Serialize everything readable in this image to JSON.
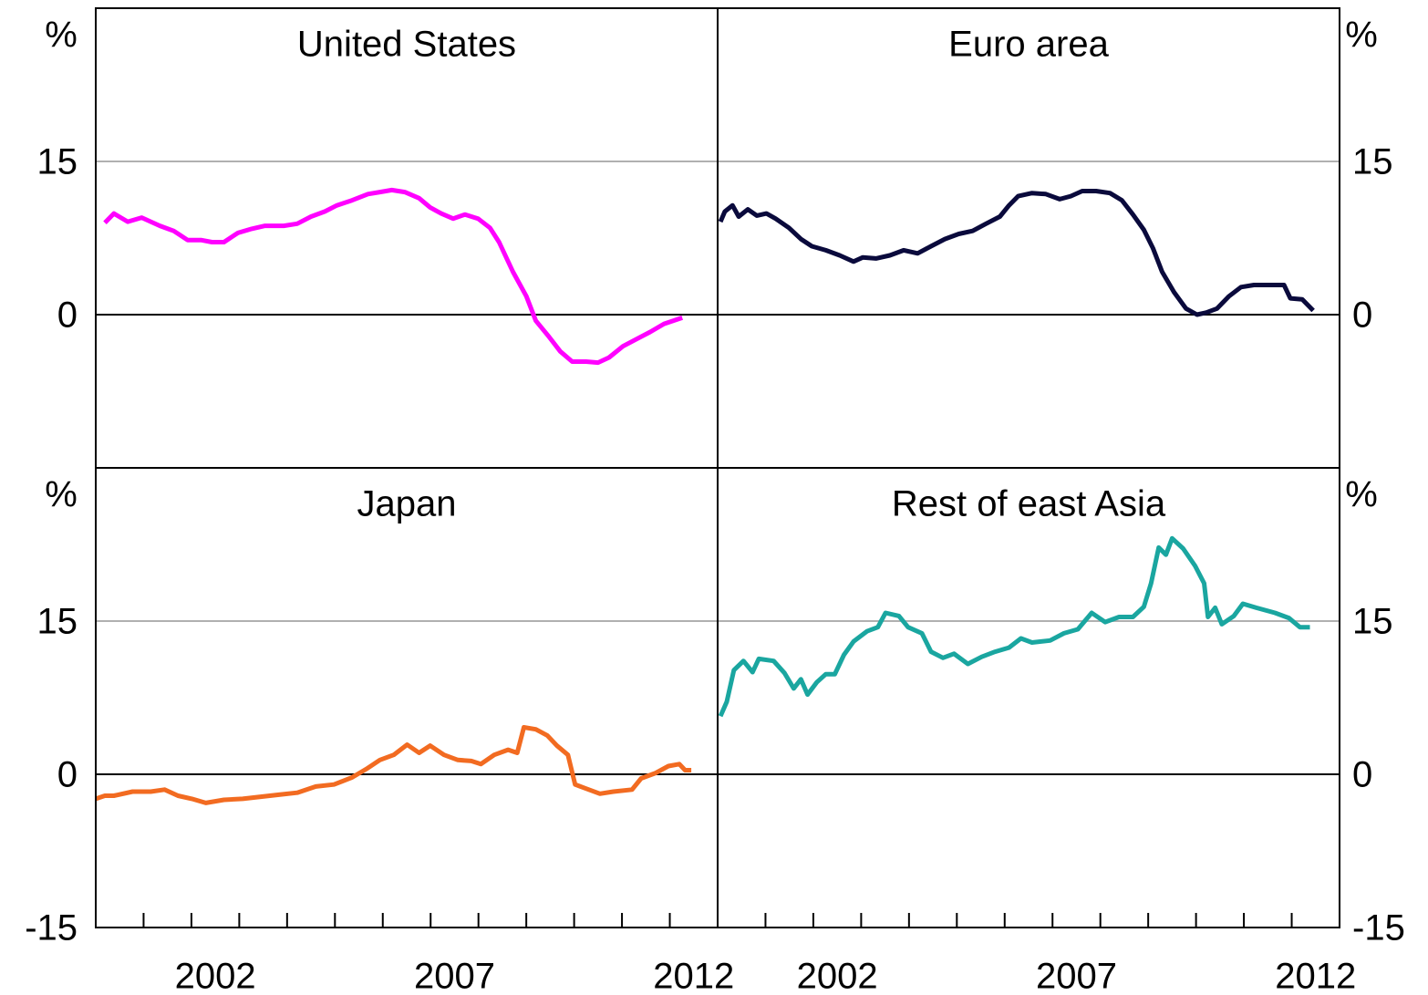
{
  "chart_data": [
    {
      "type": "line",
      "title": "United States",
      "y_unit": "%",
      "y_axis_side": "left",
      "color": "#ff00ff",
      "xlim": [
        2000,
        2013
      ],
      "ylim": [
        -15,
        30
      ],
      "yticks": [
        0,
        15
      ],
      "grid": true,
      "x": [
        2000.19,
        2000.38,
        2000.67,
        2000.96,
        2001.34,
        2001.63,
        2001.92,
        2002.2,
        2002.43,
        2002.68,
        2002.97,
        2003.26,
        2003.54,
        2003.93,
        2004.21,
        2004.5,
        2004.79,
        2005.04,
        2005.36,
        2005.69,
        2005.94,
        2006.19,
        2006.46,
        2006.76,
        2006.99,
        2007.22,
        2007.47,
        2007.72,
        2007.99,
        2008.24,
        2008.43,
        2008.72,
        2009.0,
        2009.2,
        2009.48,
        2009.71,
        2009.96,
        2010.25,
        2010.5,
        2010.73,
        2011.02,
        2011.3,
        2011.59,
        2011.88,
        2012.26
      ],
      "values": [
        9.0,
        9.9,
        9.1,
        9.5,
        8.7,
        8.2,
        7.3,
        7.3,
        7.1,
        7.1,
        8.0,
        8.4,
        8.7,
        8.7,
        8.9,
        9.6,
        10.1,
        10.7,
        11.2,
        11.8,
        12.0,
        12.2,
        12.0,
        11.4,
        10.5,
        9.9,
        9.4,
        9.8,
        9.4,
        8.5,
        7.1,
        4.2,
        1.8,
        -0.6,
        -2.2,
        -3.6,
        -4.6,
        -4.6,
        -4.7,
        -4.2,
        -3.1,
        -2.4,
        -1.7,
        -0.9,
        -0.3
      ]
    },
    {
      "type": "line",
      "title": "Euro area",
      "y_unit": "%",
      "y_axis_side": "right",
      "color": "#0a0a3c",
      "xlim": [
        2000,
        2013
      ],
      "ylim": [
        -15,
        30
      ],
      "yticks": [
        0,
        15
      ],
      "grid": true,
      "x": [
        2000.06,
        2000.15,
        2000.31,
        2000.44,
        2000.63,
        2000.82,
        2001.02,
        2001.21,
        2001.49,
        2001.74,
        2001.97,
        2002.26,
        2002.55,
        2002.84,
        2003.03,
        2003.31,
        2003.6,
        2003.89,
        2004.18,
        2004.46,
        2004.75,
        2005.04,
        2005.33,
        2005.61,
        2005.9,
        2006.09,
        2006.28,
        2006.57,
        2006.86,
        2007.15,
        2007.38,
        2007.62,
        2007.91,
        2008.2,
        2008.45,
        2008.68,
        2008.91,
        2009.1,
        2009.29,
        2009.54,
        2009.79,
        2010.02,
        2010.21,
        2010.44,
        2010.69,
        2010.94,
        2011.21,
        2011.55,
        2011.84,
        2011.97,
        2012.22,
        2012.45
      ],
      "values": [
        9.1,
        10.1,
        10.7,
        9.6,
        10.3,
        9.7,
        9.9,
        9.4,
        8.5,
        7.4,
        6.7,
        6.3,
        5.8,
        5.2,
        5.6,
        5.5,
        5.8,
        6.3,
        6.0,
        6.7,
        7.4,
        7.9,
        8.2,
        8.9,
        9.6,
        10.7,
        11.6,
        11.9,
        11.8,
        11.3,
        11.6,
        12.1,
        12.1,
        11.9,
        11.2,
        9.8,
        8.3,
        6.5,
        4.2,
        2.2,
        0.6,
        0.0,
        0.2,
        0.6,
        1.8,
        2.7,
        2.9,
        2.9,
        2.9,
        1.6,
        1.5,
        0.4
      ]
    },
    {
      "type": "line",
      "title": "Japan",
      "y_unit": "%",
      "y_axis_side": "left",
      "color": "#f26b21",
      "xlim": [
        2000,
        2013
      ],
      "ylim": [
        -15,
        30
      ],
      "yticks": [
        -15,
        0,
        15
      ],
      "grid": true,
      "xticks": [
        {
          "value": 2002.5,
          "label": "2002"
        },
        {
          "value": 2007.5,
          "label": "2007"
        },
        {
          "value": 2012.5,
          "label": "2012"
        }
      ],
      "xminor": [
        2001,
        2002,
        2003,
        2004,
        2005,
        2006,
        2007,
        2008,
        2009,
        2010,
        2011,
        2012
      ],
      "x": [
        2000.0,
        2000.19,
        2000.38,
        2000.77,
        2001.15,
        2001.44,
        2001.72,
        2002.01,
        2002.3,
        2002.68,
        2003.07,
        2003.45,
        2003.83,
        2004.21,
        2004.6,
        2004.98,
        2005.36,
        2005.65,
        2005.94,
        2006.23,
        2006.51,
        2006.76,
        2006.99,
        2007.28,
        2007.57,
        2007.85,
        2008.05,
        2008.33,
        2008.62,
        2008.81,
        2008.95,
        2009.2,
        2009.44,
        2009.64,
        2009.87,
        2010.02,
        2010.25,
        2010.54,
        2010.82,
        2011.21,
        2011.4,
        2011.69,
        2011.97,
        2012.2,
        2012.32,
        2012.45
      ],
      "values": [
        -2.4,
        -2.1,
        -2.1,
        -1.7,
        -1.7,
        -1.5,
        -2.1,
        -2.4,
        -2.8,
        -2.5,
        -2.4,
        -2.2,
        -2.0,
        -1.8,
        -1.2,
        -1.0,
        -0.3,
        0.5,
        1.4,
        1.9,
        2.9,
        2.1,
        2.8,
        1.9,
        1.4,
        1.3,
        1.0,
        1.9,
        2.4,
        2.1,
        4.6,
        4.4,
        3.8,
        2.8,
        1.9,
        -1.0,
        -1.4,
        -1.9,
        -1.7,
        -1.5,
        -0.4,
        0.1,
        0.8,
        1.0,
        0.4,
        0.4
      ]
    },
    {
      "type": "line",
      "title": "Rest of east Asia",
      "y_unit": "%",
      "y_axis_side": "right",
      "color": "#1aa6a0",
      "xlim": [
        2000,
        2013
      ],
      "ylim": [
        -15,
        30
      ],
      "yticks": [
        -15,
        0,
        15
      ],
      "grid": true,
      "xticks": [
        {
          "value": 2002.5,
          "label": "2002"
        },
        {
          "value": 2007.5,
          "label": "2007"
        },
        {
          "value": 2012.5,
          "label": "2012"
        }
      ],
      "xminor": [
        2001,
        2002,
        2003,
        2004,
        2005,
        2006,
        2007,
        2008,
        2009,
        2010,
        2011,
        2012
      ],
      "x": [
        2000.06,
        2000.19,
        2000.34,
        2000.54,
        2000.73,
        2000.86,
        2001.17,
        2001.4,
        2001.59,
        2001.74,
        2001.88,
        2002.07,
        2002.26,
        2002.45,
        2002.64,
        2002.84,
        2003.12,
        2003.35,
        2003.51,
        2003.79,
        2003.98,
        2004.27,
        2004.46,
        2004.71,
        2004.94,
        2005.23,
        2005.52,
        2005.8,
        2006.09,
        2006.34,
        2006.57,
        2006.95,
        2007.24,
        2007.53,
        2007.82,
        2008.1,
        2008.39,
        2008.68,
        2008.91,
        2009.06,
        2009.22,
        2009.37,
        2009.5,
        2009.73,
        2009.98,
        2010.17,
        2010.25,
        2010.4,
        2010.54,
        2010.79,
        2010.98,
        2011.26,
        2011.65,
        2011.94,
        2012.17,
        2012.38
      ],
      "values": [
        5.7,
        7.1,
        10.2,
        11.1,
        10.0,
        11.3,
        11.1,
        9.9,
        8.4,
        9.3,
        7.8,
        9.0,
        9.8,
        9.8,
        11.7,
        13.0,
        14.0,
        14.4,
        15.8,
        15.5,
        14.4,
        13.8,
        12.0,
        11.4,
        11.8,
        10.8,
        11.5,
        12.0,
        12.4,
        13.3,
        12.9,
        13.1,
        13.8,
        14.2,
        15.8,
        14.9,
        15.4,
        15.4,
        16.4,
        18.7,
        22.2,
        21.5,
        23.1,
        22.1,
        20.4,
        18.7,
        15.4,
        16.3,
        14.7,
        15.5,
        16.7,
        16.3,
        15.8,
        15.3,
        14.4,
        14.4
      ]
    }
  ]
}
